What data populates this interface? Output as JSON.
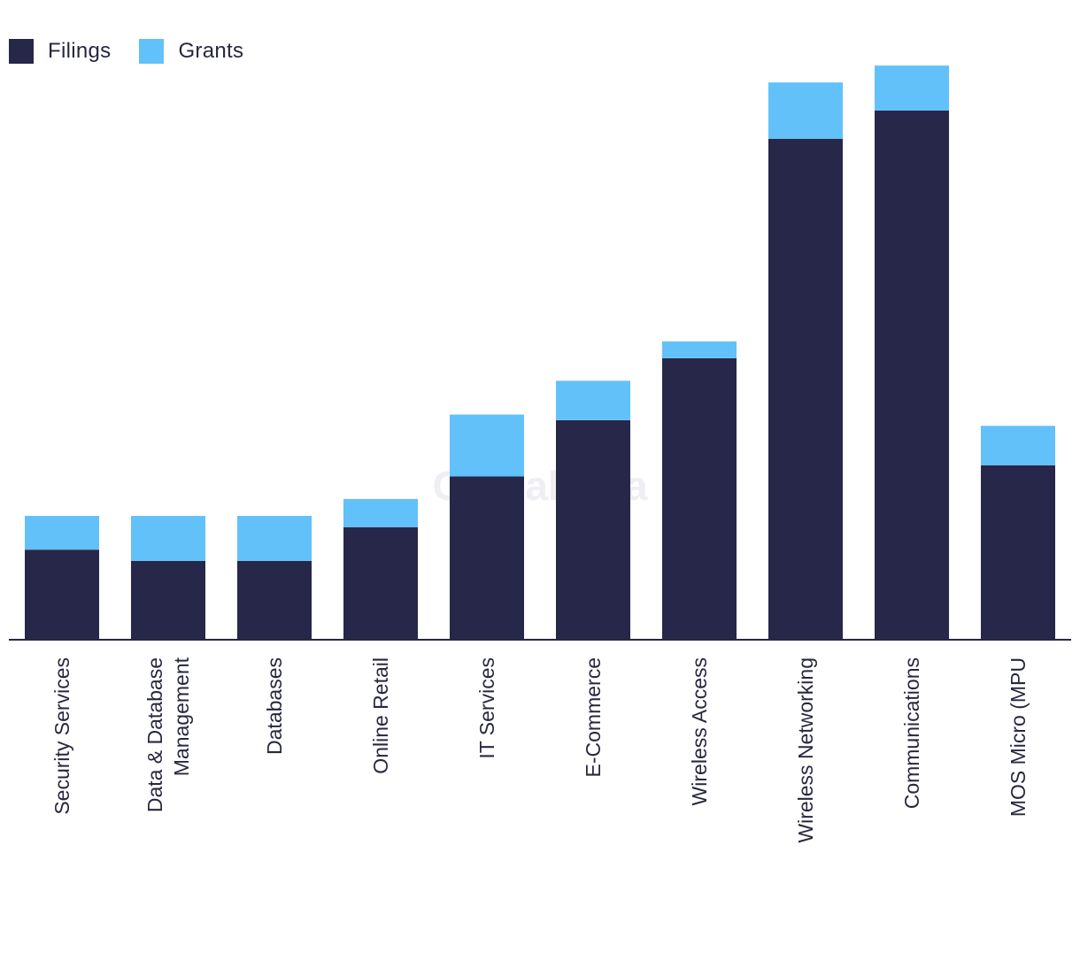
{
  "watermark": "GlobalData",
  "chart_data": {
    "type": "bar",
    "stacked": true,
    "title": "",
    "xlabel": "",
    "ylabel": "",
    "categories": [
      [
        "Security Services"
      ],
      [
        "Data & Database",
        "Management"
      ],
      [
        "Databases"
      ],
      [
        "Online Retail"
      ],
      [
        "IT Services"
      ],
      [
        "E-Commerce"
      ],
      [
        "Wireless Access"
      ],
      [
        "Wireless Networking"
      ],
      [
        "Communications"
      ],
      [
        "MOS Micro (MPU"
      ]
    ],
    "series": [
      {
        "name": "Filings",
        "color": "#27274a",
        "values": [
          16,
          14,
          14,
          20,
          29,
          39,
          50,
          89,
          94,
          31
        ]
      },
      {
        "name": "Grants",
        "color": "#62c1f9",
        "values": [
          6,
          8,
          8,
          5,
          11,
          7,
          3,
          10,
          8,
          7
        ]
      }
    ],
    "ylim": [
      0,
      105
    ],
    "grid": false,
    "legend": "top-left"
  }
}
